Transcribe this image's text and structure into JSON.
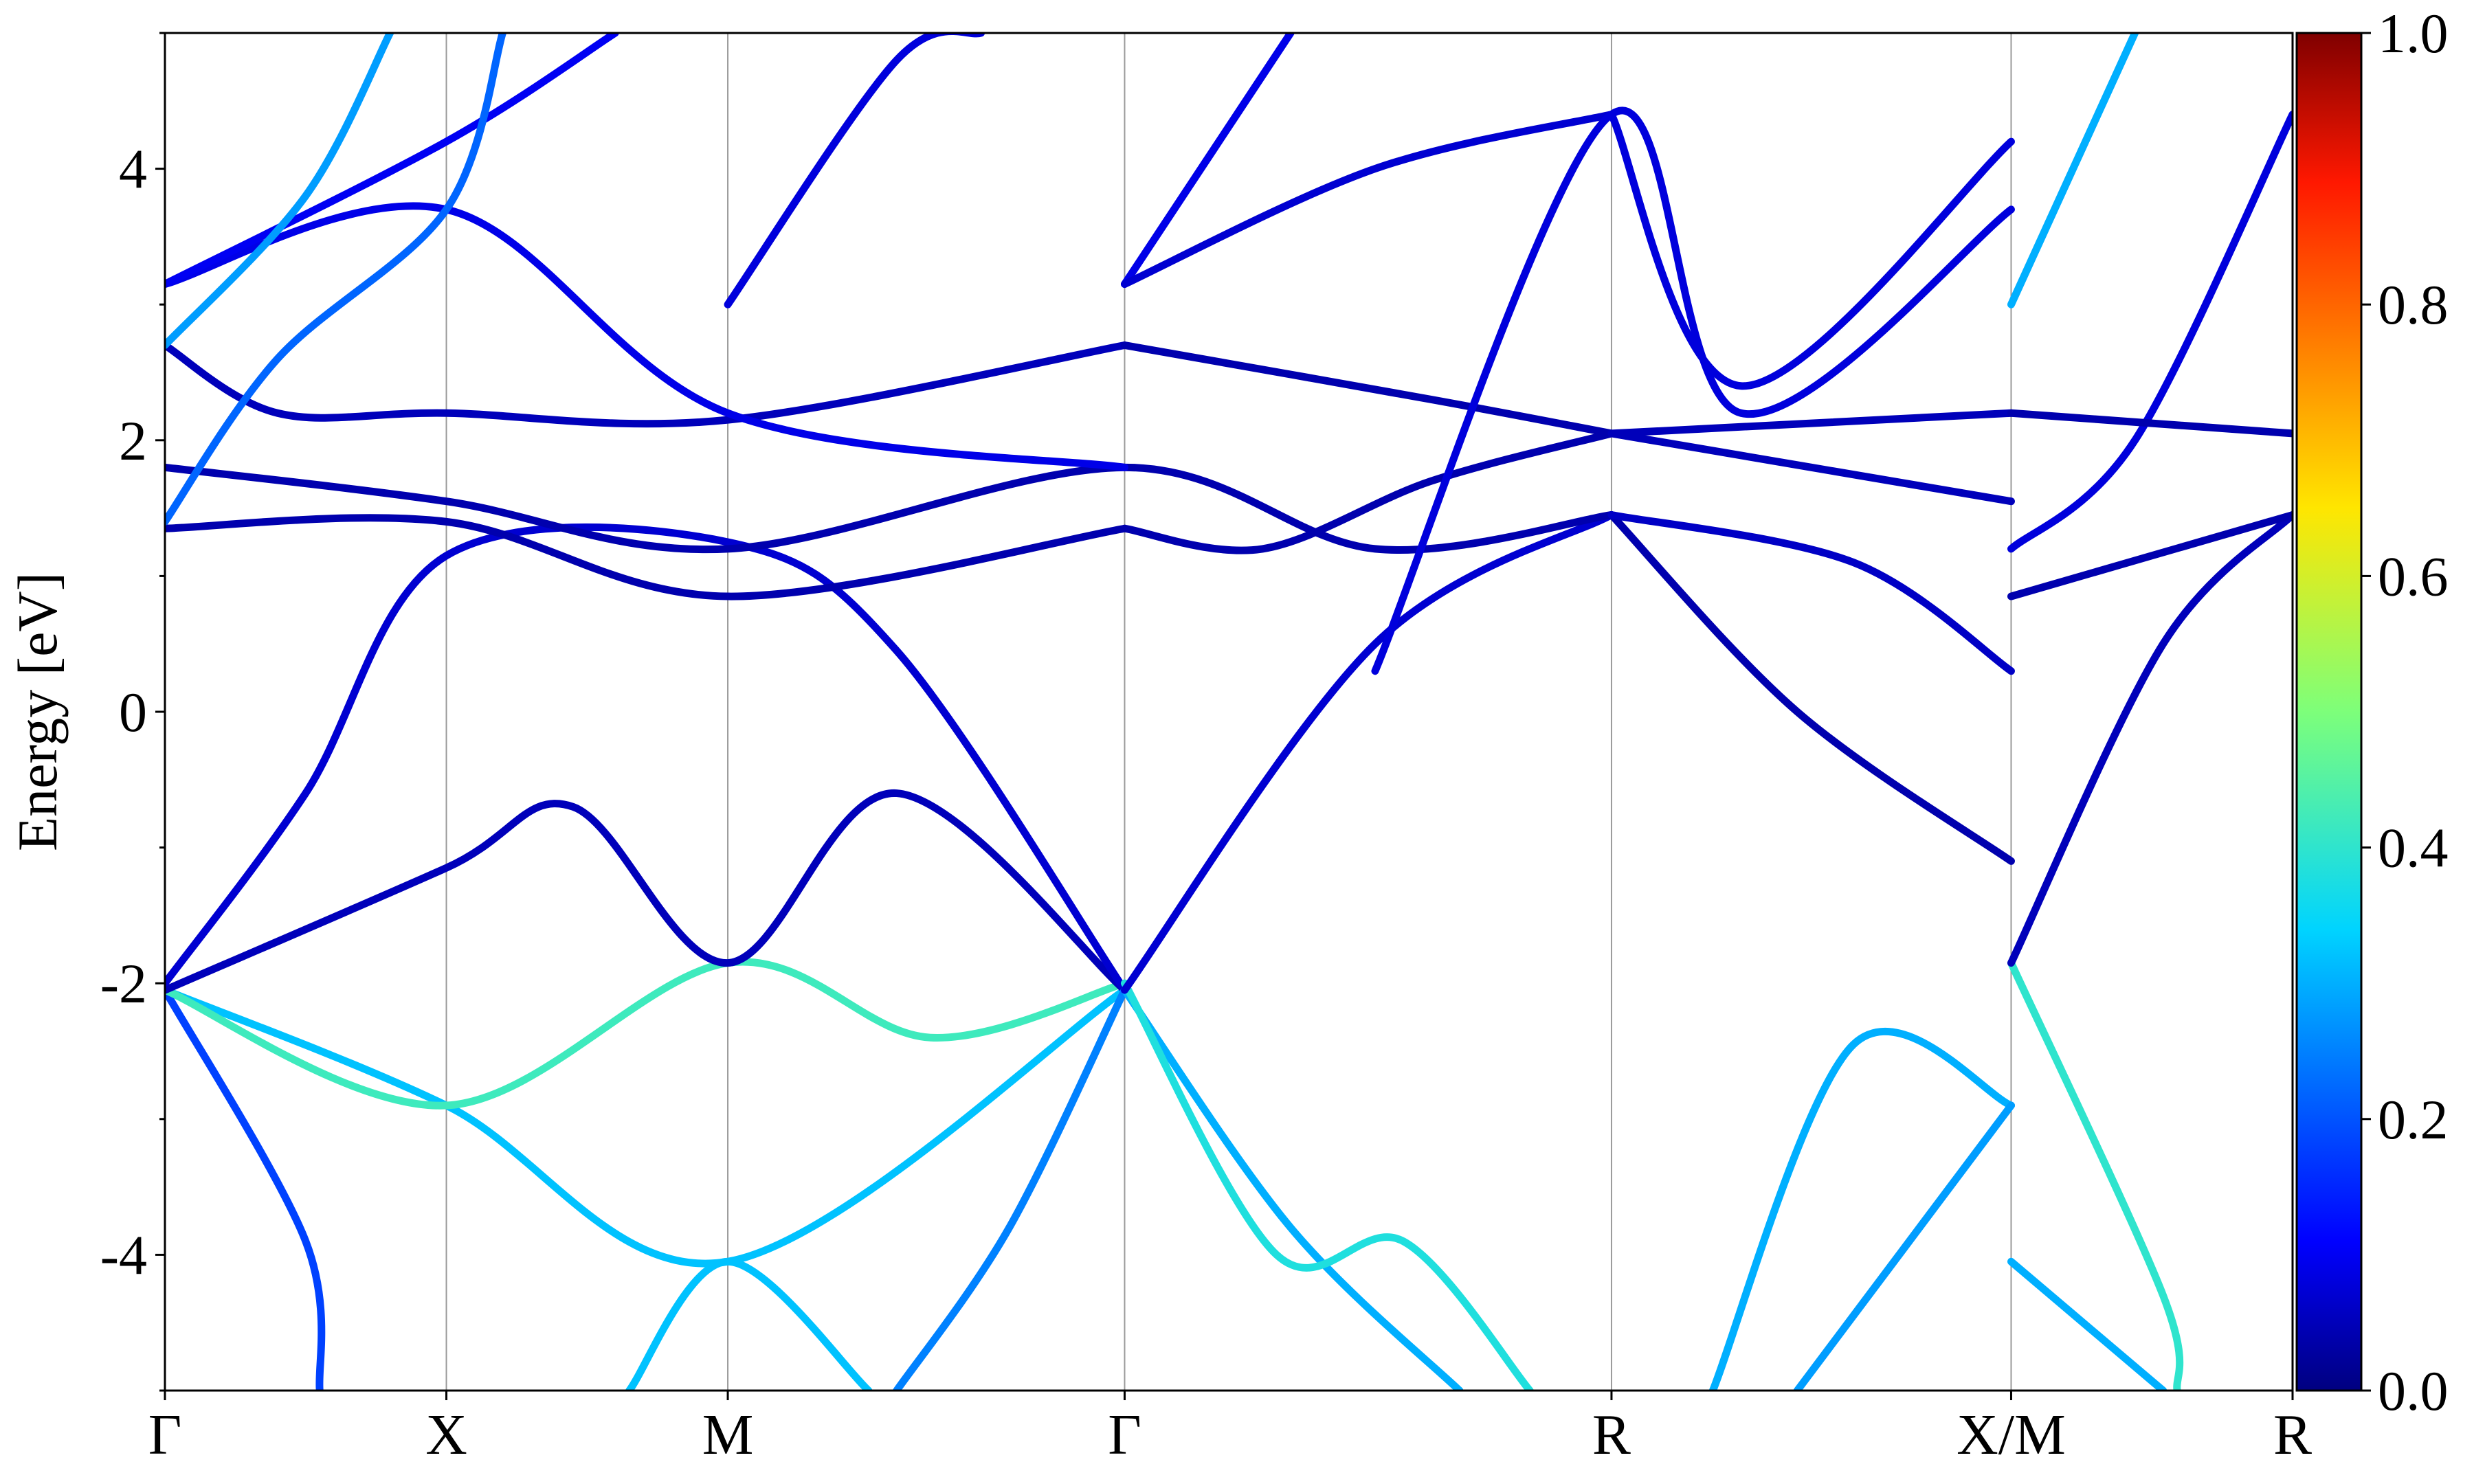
{
  "chart_data": {
    "type": "line",
    "title": "",
    "xlabel": "",
    "ylabel": "Energy [eV]",
    "ylim": [
      -5,
      5
    ],
    "yticks": [
      -4,
      -2,
      0,
      2,
      4
    ],
    "ytick_labels": [
      "-4",
      "-2",
      "0",
      "2",
      "4"
    ],
    "grid": false,
    "kpoints": [
      {
        "label": "Γ",
        "x": 0
      },
      {
        "label": "X",
        "x": 1
      },
      {
        "label": "M",
        "x": 2
      },
      {
        "label": "Γ",
        "x": 3.41
      },
      {
        "label": "R",
        "x": 5.14
      },
      {
        "label": "X/M",
        "x": 6.56
      },
      {
        "label": "R",
        "x": 7.56
      }
    ],
    "xlim": [
      0,
      7.56
    ],
    "colorbar": {
      "colormap": "jet",
      "range": [
        0.0,
        1.0
      ],
      "ticks": [
        0.0,
        0.2,
        0.4,
        0.6,
        0.8,
        1.0
      ],
      "tick_labels": [
        "0.0",
        "0.2",
        "0.4",
        "0.6",
        "0.8",
        "1.0"
      ]
    },
    "bands": [
      {
        "w": 0.18,
        "points": [
          [
            0,
            -2.05
          ],
          [
            0.5,
            -3.9
          ],
          [
            0.55,
            -5.0
          ]
        ]
      },
      {
        "w": 0.32,
        "points": [
          [
            0,
            -2.05
          ],
          [
            1,
            -2.9
          ],
          [
            2,
            -4.05
          ],
          [
            3.41,
            -2.05
          ]
        ]
      },
      {
        "w": 0.42,
        "points": [
          [
            0,
            -2.05
          ],
          [
            1,
            -2.9
          ],
          [
            2,
            -1.85
          ],
          [
            2.72,
            -2.4
          ],
          [
            3.41,
            -2.0
          ]
        ]
      },
      {
        "w": 0.05,
        "points": [
          [
            0,
            -2.05
          ],
          [
            1,
            -1.15
          ],
          [
            1.45,
            -0.7
          ],
          [
            2,
            -1.85
          ],
          [
            2.6,
            -0.6
          ],
          [
            3.41,
            -2.05
          ]
        ]
      },
      {
        "w": 0.07,
        "points": [
          [
            0,
            -2.0
          ],
          [
            0.5,
            -0.6
          ],
          [
            1,
            1.15
          ],
          [
            2,
            1.25
          ],
          [
            2.6,
            0.45
          ],
          [
            3.41,
            -2.05
          ]
        ]
      },
      {
        "w": 0.32,
        "points": [
          [
            1.65,
            -5.0
          ],
          [
            2,
            -4.05
          ],
          [
            2.5,
            -5.0
          ]
        ]
      },
      {
        "w": 0.25,
        "points": [
          [
            2.6,
            -5.0
          ],
          [
            3.0,
            -3.8
          ],
          [
            3.41,
            -2.05
          ]
        ]
      },
      {
        "w": 0.3,
        "points": [
          [
            3.41,
            -2.05
          ],
          [
            4.0,
            -3.8
          ],
          [
            4.6,
            -5.0
          ]
        ]
      },
      {
        "w": 0.38,
        "points": [
          [
            3.41,
            -2.0
          ],
          [
            3.95,
            -4.0
          ],
          [
            4.4,
            -3.9
          ],
          [
            4.85,
            -5.0
          ]
        ]
      },
      {
        "w": 0.07,
        "points": [
          [
            3.41,
            -2.05
          ],
          [
            4.3,
            0.5
          ],
          [
            5.14,
            1.45
          ]
        ]
      },
      {
        "w": 0.04,
        "points": [
          [
            3.41,
            1.35
          ],
          [
            3.9,
            1.2
          ],
          [
            4.5,
            1.7
          ],
          [
            5.14,
            2.05
          ]
        ]
      },
      {
        "w": 0.3,
        "points": [
          [
            5.5,
            -5.0
          ],
          [
            6.0,
            -2.45
          ],
          [
            6.56,
            -2.9
          ]
        ]
      },
      {
        "w": 0.28,
        "points": [
          [
            5.8,
            -5.0
          ],
          [
            6.56,
            -2.9
          ]
        ]
      },
      {
        "w": 0.3,
        "points": [
          [
            6.56,
            -4.05
          ],
          [
            7.1,
            -5.0
          ]
        ]
      },
      {
        "w": 0.4,
        "points": [
          [
            6.56,
            -1.85
          ],
          [
            7.1,
            -4.3
          ],
          [
            7.15,
            -5.0
          ]
        ]
      },
      {
        "w": 0.05,
        "points": [
          [
            6.56,
            -1.85
          ],
          [
            7.1,
            0.5
          ],
          [
            7.56,
            1.45
          ]
        ]
      },
      {
        "w": 0.04,
        "points": [
          [
            5.14,
            1.45
          ],
          [
            5.8,
            0.0
          ],
          [
            6.56,
            -1.1
          ]
        ]
      },
      {
        "w": 0.04,
        "points": [
          [
            0,
            1.35
          ],
          [
            1,
            1.4
          ],
          [
            2,
            0.85
          ],
          [
            3.41,
            1.35
          ]
        ]
      },
      {
        "w": 0.04,
        "points": [
          [
            0,
            1.8
          ],
          [
            1,
            1.55
          ],
          [
            2,
            1.2
          ],
          [
            3.41,
            1.8
          ],
          [
            4.3,
            1.2
          ],
          [
            5.14,
            1.45
          ]
        ]
      },
      {
        "w": 0.05,
        "points": [
          [
            0,
            2.7
          ],
          [
            0.4,
            2.2
          ],
          [
            1,
            2.2
          ],
          [
            2,
            2.15
          ],
          [
            3.41,
            2.7
          ]
        ]
      },
      {
        "w": 0.09,
        "points": [
          [
            0,
            3.15
          ],
          [
            1,
            3.7
          ],
          [
            2,
            2.2
          ],
          [
            3.41,
            1.8
          ]
        ]
      },
      {
        "w": 0.1,
        "points": [
          [
            0,
            3.15
          ],
          [
            1,
            4.2
          ],
          [
            1.6,
            5.0
          ]
        ]
      },
      {
        "w": 0.28,
        "points": [
          [
            0,
            2.7
          ],
          [
            0.5,
            3.8
          ],
          [
            0.8,
            5.0
          ]
        ]
      },
      {
        "w": 0.22,
        "points": [
          [
            0,
            1.4
          ],
          [
            0.4,
            2.6
          ],
          [
            1,
            3.7
          ],
          [
            1.2,
            5.0
          ]
        ]
      },
      {
        "w": 0.08,
        "points": [
          [
            2,
            3.0
          ],
          [
            2.6,
            4.8
          ],
          [
            2.9,
            5.0
          ]
        ]
      },
      {
        "w": 0.09,
        "points": [
          [
            3.41,
            3.15
          ],
          [
            4.0,
            5.0
          ]
        ]
      },
      {
        "w": 0.07,
        "points": [
          [
            3.41,
            3.15
          ],
          [
            4.3,
            4.0
          ],
          [
            5.14,
            4.4
          ]
        ]
      },
      {
        "w": 0.04,
        "points": [
          [
            3.41,
            2.7
          ],
          [
            4.5,
            2.3
          ],
          [
            5.14,
            2.05
          ]
        ]
      },
      {
        "w": 0.08,
        "points": [
          [
            4.3,
            0.3
          ],
          [
            5.14,
            4.4
          ],
          [
            5.6,
            2.2
          ],
          [
            6.56,
            3.7
          ]
        ]
      },
      {
        "w": 0.08,
        "points": [
          [
            5.14,
            4.4
          ],
          [
            5.6,
            2.4
          ],
          [
            6.56,
            4.2
          ]
        ]
      },
      {
        "w": 0.05,
        "points": [
          [
            5.14,
            2.05
          ],
          [
            6.56,
            1.55
          ]
        ]
      },
      {
        "w": 0.05,
        "points": [
          [
            5.14,
            2.05
          ],
          [
            6.56,
            2.2
          ]
        ]
      },
      {
        "w": 0.06,
        "points": [
          [
            5.14,
            1.45
          ],
          [
            6.0,
            1.1
          ],
          [
            6.56,
            0.3
          ]
        ]
      },
      {
        "w": 0.08,
        "points": [
          [
            6.56,
            1.2
          ],
          [
            7.0,
            2.0
          ],
          [
            7.56,
            4.4
          ]
        ]
      },
      {
        "w": 0.3,
        "points": [
          [
            6.56,
            3.0
          ],
          [
            7.0,
            5.0
          ]
        ]
      },
      {
        "w": 0.04,
        "points": [
          [
            6.56,
            2.2
          ],
          [
            7.56,
            2.05
          ]
        ]
      },
      {
        "w": 0.04,
        "points": [
          [
            6.56,
            0.85
          ],
          [
            7.56,
            1.45
          ]
        ]
      }
    ]
  }
}
